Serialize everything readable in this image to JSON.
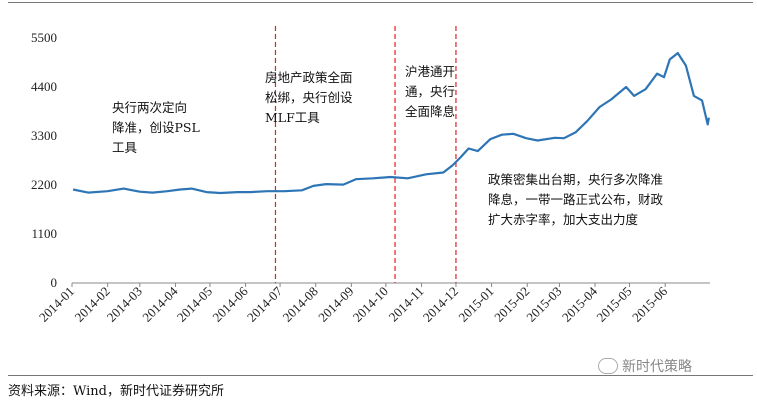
{
  "chart_data": {
    "type": "line",
    "title": "",
    "xlabel": "",
    "ylabel": "",
    "ylim": [
      0,
      5500
    ],
    "y_ticks": [
      "5500",
      "4400",
      "3300",
      "2200",
      "1100",
      "0"
    ],
    "x_tick_labels": [
      "2014-01",
      "2014-02",
      "2014-03",
      "2014-04",
      "2014-05",
      "2014-06",
      "2014-07",
      "2014-08",
      "2014-09",
      "2014-10",
      "2014-11",
      "2014-12",
      "2015-01",
      "2015-02",
      "2015-03",
      "2015-04",
      "2015-05",
      "2015-06"
    ],
    "grid": false,
    "legend": "none",
    "line_color": "#2e75b6",
    "marker_color": "#e02020",
    "series": [
      {
        "x": [
          "2014-01-02",
          "2014-01-15",
          "2014-02-01",
          "2014-02-15",
          "2014-03-01",
          "2014-03-12",
          "2014-03-25",
          "2014-04-05",
          "2014-04-15",
          "2014-04-28",
          "2014-05-10",
          "2014-05-25",
          "2014-06-05",
          "2014-06-20",
          "2014-07-05",
          "2014-07-20",
          "2014-07-30",
          "2014-08-10",
          "2014-08-25",
          "2014-09-05",
          "2014-09-20",
          "2014-10-05",
          "2014-10-20",
          "2014-11-05",
          "2014-11-20",
          "2014-11-28",
          "2014-12-05",
          "2014-12-12",
          "2014-12-20",
          "2014-12-31",
          "2015-01-10",
          "2015-01-20",
          "2015-01-31",
          "2015-02-10",
          "2015-02-25",
          "2015-03-05",
          "2015-03-15",
          "2015-03-25",
          "2015-04-05",
          "2015-04-15",
          "2015-04-28",
          "2015-05-05",
          "2015-05-15",
          "2015-05-25",
          "2015-05-31",
          "2015-06-05",
          "2015-06-12",
          "2015-06-19",
          "2015-06-26",
          "2015-07-03",
          "2015-07-08",
          "2015-07-09"
        ],
        "values": [
          2100,
          2030,
          2060,
          2120,
          2050,
          2030,
          2060,
          2100,
          2120,
          2040,
          2020,
          2040,
          2040,
          2060,
          2060,
          2080,
          2180,
          2220,
          2210,
          2330,
          2350,
          2380,
          2350,
          2440,
          2480,
          2640,
          2820,
          3020,
          2960,
          3230,
          3330,
          3350,
          3250,
          3200,
          3260,
          3250,
          3380,
          3630,
          3950,
          4120,
          4400,
          4200,
          4350,
          4700,
          4620,
          5020,
          5160,
          4880,
          4200,
          4100,
          3560,
          3710
        ]
      }
    ],
    "markers": [
      "2014-06-27",
      "2014-10-09",
      "2014-12-01"
    ],
    "annotations": [
      {
        "lines": [
          "央行两次定向",
          "降准，创设PSL",
          "工具"
        ]
      },
      {
        "lines": [
          "房地产政策全面",
          "松绑，央行创设",
          "MLF工具"
        ]
      },
      {
        "lines": [
          "沪港通开",
          "通，央行",
          "全面降息"
        ]
      },
      {
        "lines": [
          "政策密集出台期，央行多次降准",
          "降息，一带一路正式公布，财政",
          "扩大赤字率，加大支出力度"
        ]
      }
    ]
  },
  "footer": {
    "source": "资料来源：Wind，新时代证券研究所",
    "watermark": "新时代策略"
  }
}
